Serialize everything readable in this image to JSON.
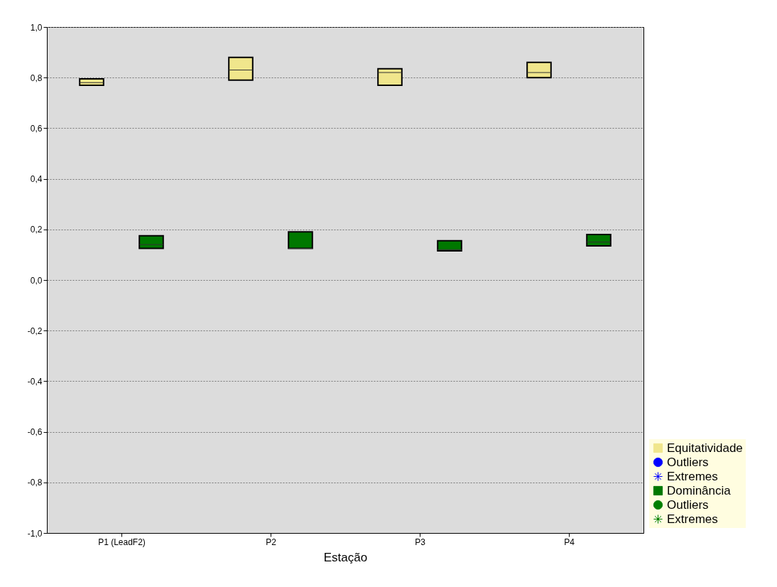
{
  "chart_data": {
    "type": "box",
    "xlabel": "Estação",
    "categories": [
      "P1 (LeadF2)",
      "P2",
      "P3",
      "P4"
    ],
    "ylim": [
      -1,
      1
    ],
    "yticks": [
      {
        "value": -1,
        "label": "-1,0"
      },
      {
        "value": -0.8,
        "label": "-0,8"
      },
      {
        "value": -0.6,
        "label": "-0,6"
      },
      {
        "value": -0.4,
        "label": "-0,4"
      },
      {
        "value": -0.2,
        "label": "-0,2"
      },
      {
        "value": 0,
        "label": "0,0"
      },
      {
        "value": 0.2,
        "label": "0,2"
      },
      {
        "value": 0.4,
        "label": "0,4"
      },
      {
        "value": 0.6,
        "label": "0,6"
      },
      {
        "value": 0.8,
        "label": "0,8"
      },
      {
        "value": 1,
        "label": "1,0"
      }
    ],
    "grid": "y",
    "legend": "bottom right",
    "series": [
      {
        "name": "Equitatividade",
        "color": "#f0e68c",
        "boxes": [
          {
            "low": 0.77,
            "q1": 0.77,
            "median": 0.78,
            "q3": 0.795,
            "high": 0.795
          },
          {
            "low": 0.79,
            "q1": 0.79,
            "median": 0.83,
            "q3": 0.88,
            "high": 0.88
          },
          {
            "low": 0.77,
            "q1": 0.77,
            "median": 0.82,
            "q3": 0.835,
            "high": 0.835
          },
          {
            "low": 0.8,
            "q1": 0.8,
            "median": 0.82,
            "q3": 0.86,
            "high": 0.86
          }
        ]
      },
      {
        "name": "Outliers",
        "type": "scatter",
        "marker": "circle",
        "color": "#0000ff",
        "values": [
          null,
          null,
          null,
          null
        ]
      },
      {
        "name": "Extremes",
        "type": "scatter",
        "marker": "star",
        "color": "#0000ff",
        "values": [
          null,
          null,
          null,
          null
        ]
      },
      {
        "name": "Dominância",
        "color": "#007800",
        "boxes": [
          {
            "low": 0.125,
            "q1": 0.125,
            "median": 0.14,
            "q3": 0.175,
            "high": 0.175
          },
          {
            "low": 0.125,
            "q1": 0.125,
            "median": 0.125,
            "q3": 0.19,
            "high": 0.19
          },
          {
            "low": 0.115,
            "q1": 0.115,
            "median": 0.12,
            "q3": 0.155,
            "high": 0.155
          },
          {
            "low": 0.135,
            "q1": 0.135,
            "median": 0.15,
            "q3": 0.18,
            "high": 0.18
          }
        ]
      },
      {
        "name": "Outliers",
        "type": "scatter",
        "marker": "circle",
        "color": "#008000",
        "values": [
          null,
          null,
          null,
          null
        ]
      },
      {
        "name": "Extremes",
        "type": "scatter",
        "marker": "star",
        "color": "#008000",
        "values": [
          null,
          null,
          null,
          null
        ]
      }
    ]
  }
}
